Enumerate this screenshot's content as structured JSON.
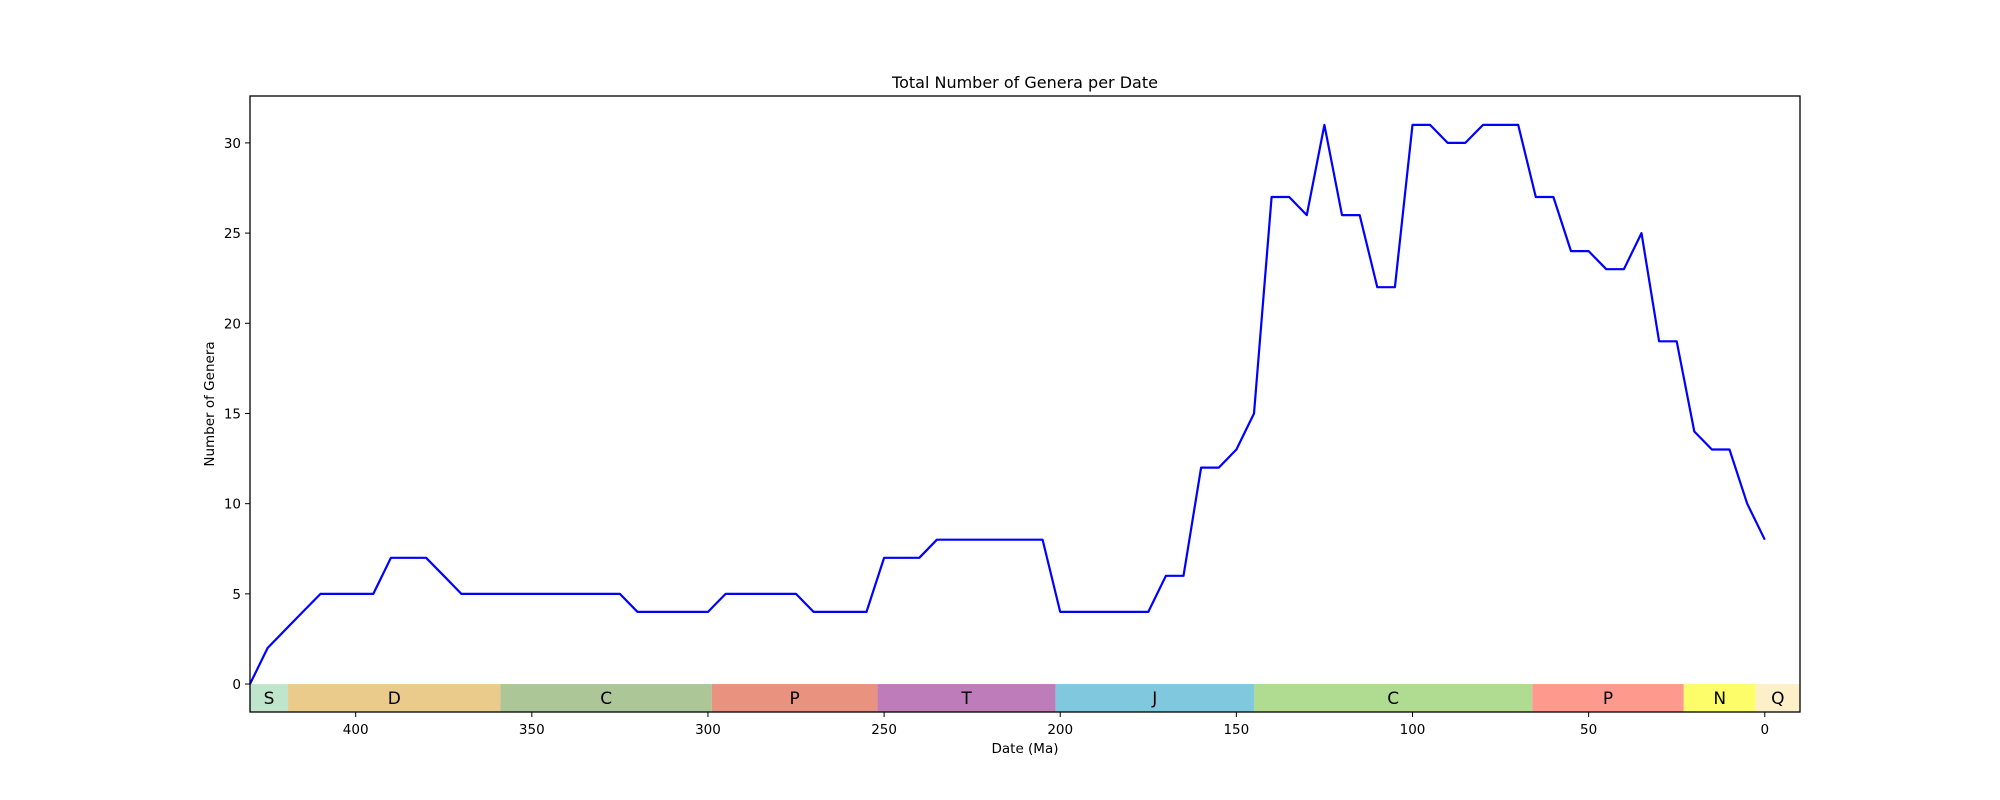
{
  "chart_data": {
    "type": "line",
    "title": "Total Number of Genera per Date",
    "xlabel": "Date (Ma)",
    "ylabel": "Number of Genera",
    "xlim": [
      430,
      -10
    ],
    "ylim": [
      -1.55,
      32.6
    ],
    "x_inverted": true,
    "grid": false,
    "x_ticks": [
      400,
      350,
      300,
      250,
      200,
      150,
      100,
      50,
      0
    ],
    "y_ticks": [
      0,
      5,
      10,
      15,
      20,
      25,
      30
    ],
    "series": [
      {
        "color": "#0000ff",
        "x": [
          430,
          425,
          420,
          415,
          410,
          405,
          400,
          395,
          390,
          385,
          380,
          375,
          370,
          365,
          360,
          355,
          350,
          345,
          340,
          335,
          330,
          325,
          320,
          315,
          310,
          305,
          300,
          295,
          290,
          285,
          280,
          275,
          270,
          265,
          260,
          255,
          250,
          245,
          240,
          235,
          230,
          225,
          220,
          215,
          210,
          205,
          200,
          195,
          190,
          185,
          180,
          175,
          170,
          165,
          160,
          155,
          150,
          145,
          140,
          135,
          130,
          125,
          120,
          115,
          110,
          105,
          100,
          95,
          90,
          85,
          80,
          75,
          70,
          65,
          60,
          55,
          50,
          45,
          40,
          35,
          30,
          25,
          20,
          15,
          10,
          5,
          0
        ],
        "y": [
          0,
          2,
          3,
          4,
          5,
          5,
          5,
          5,
          7,
          7,
          7,
          6,
          5,
          5,
          5,
          5,
          5,
          5,
          5,
          5,
          5,
          5,
          4,
          4,
          4,
          4,
          4,
          5,
          5,
          5,
          5,
          5,
          4,
          4,
          4,
          4,
          7,
          7,
          7,
          8,
          8,
          8,
          8,
          8,
          8,
          8,
          4,
          4,
          4,
          4,
          4,
          4,
          6,
          6,
          12,
          12,
          13,
          15,
          27,
          27,
          26,
          31,
          26,
          26,
          22,
          22,
          31,
          31,
          30,
          30,
          31,
          31,
          31,
          27,
          27,
          24,
          24,
          23,
          23,
          25,
          19,
          19,
          14,
          13,
          13,
          10,
          8
        ]
      }
    ],
    "periods": [
      {
        "label": "S",
        "start": 430,
        "end": 419.2,
        "color": "#bfe6cc"
      },
      {
        "label": "D",
        "start": 419.2,
        "end": 358.9,
        "color": "#eacb8b"
      },
      {
        "label": "C",
        "start": 358.9,
        "end": 298.9,
        "color": "#acc697"
      },
      {
        "label": "P",
        "start": 298.9,
        "end": 251.9,
        "color": "#e9927f"
      },
      {
        "label": "T",
        "start": 251.9,
        "end": 201.3,
        "color": "#be7cbb"
      },
      {
        "label": "J",
        "start": 201.3,
        "end": 145,
        "color": "#80c8de"
      },
      {
        "label": "C",
        "start": 145,
        "end": 66,
        "color": "#b0dc91"
      },
      {
        "label": "P",
        "start": 66,
        "end": 23,
        "color": "#fd9a8d"
      },
      {
        "label": "N",
        "start": 23,
        "end": 2.6,
        "color": "#fdfd6a"
      },
      {
        "label": "Q",
        "start": 2.6,
        "end": -10,
        "color": "#fdf0c8"
      }
    ]
  }
}
